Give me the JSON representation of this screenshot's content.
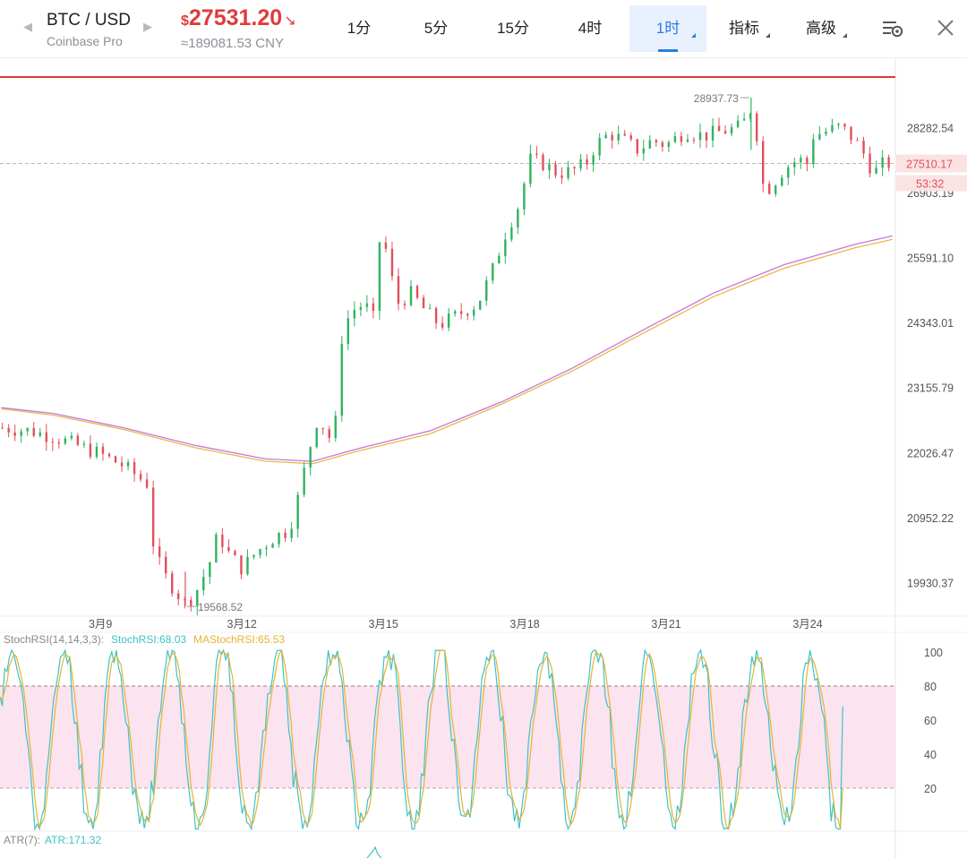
{
  "header": {
    "symbol": "BTC / USD",
    "exchange": "Coinbase Pro",
    "currency_symbol": "$",
    "price": "27531.20",
    "price_cny": "≈189081.53 CNY",
    "accent_down": "#e03b3b"
  },
  "tabs": [
    {
      "label": "1分",
      "active": false,
      "has_menu": false
    },
    {
      "label": "5分",
      "active": false,
      "has_menu": false
    },
    {
      "label": "15分",
      "active": false,
      "has_menu": false
    },
    {
      "label": "4时",
      "active": false,
      "has_menu": false
    },
    {
      "label": "1时",
      "active": true,
      "has_menu": true
    },
    {
      "label": "指标",
      "active": false,
      "has_menu": true
    },
    {
      "label": "高级",
      "active": false,
      "has_menu": true
    }
  ],
  "icons": {
    "prev": "chevron-left-icon",
    "next": "chevron-right-icon",
    "price_direction": "arrow-down-right-icon",
    "settings": "chart-settings-icon",
    "close": "close-icon"
  },
  "chart_data": [
    {
      "type": "candlestick",
      "interval": "1时",
      "y_axis_ticks": [
        28282.54,
        26903.19,
        25591.1,
        24343.01,
        23155.79,
        22026.47,
        20952.22,
        19930.37
      ],
      "y_axis_labels": [
        "28282.54",
        "26903.19",
        "25591.10",
        "24343.01",
        "23155.79",
        "22026.47",
        "20952.22",
        "19930.37"
      ],
      "ylim": [
        19450,
        29400
      ],
      "y_scale": "log",
      "x_axis_labels": [
        "3月9",
        "3月12",
        "3月15",
        "3月18",
        "3月21",
        "3月24"
      ],
      "x_days": [
        9,
        12,
        15,
        18,
        21,
        24
      ],
      "xlim_days": [
        6.87,
        25.86
      ],
      "last_price": "27510.17",
      "last_price_value": 27510.17,
      "countdown": "53:32",
      "high_label": "28937.73",
      "high_value": 28937.73,
      "high_day": 22.8,
      "low_label": "19568.52",
      "low_value": 19568.52,
      "low_day": 10.8,
      "close_path": [
        [
          6.9,
          22450
        ],
        [
          7.5,
          22400
        ],
        [
          8.0,
          22300
        ],
        [
          8.5,
          22150
        ],
        [
          9.0,
          22000
        ],
        [
          9.5,
          21800
        ],
        [
          10.0,
          21500
        ],
        [
          10.1,
          20600
        ],
        [
          10.3,
          20100
        ],
        [
          10.6,
          19800
        ],
        [
          10.8,
          19600
        ],
        [
          11.0,
          19750
        ],
        [
          11.3,
          20200
        ],
        [
          11.5,
          20700
        ],
        [
          11.7,
          20400
        ],
        [
          12.0,
          20150
        ],
        [
          12.3,
          20400
        ],
        [
          12.7,
          20650
        ],
        [
          13.0,
          20750
        ],
        [
          13.2,
          21300
        ],
        [
          13.4,
          22000
        ],
        [
          13.6,
          22600
        ],
        [
          13.8,
          22400
        ],
        [
          13.95,
          22100
        ],
        [
          14.1,
          24000
        ],
        [
          14.3,
          24550
        ],
        [
          14.6,
          24700
        ],
        [
          14.8,
          24400
        ],
        [
          14.95,
          26300
        ],
        [
          15.1,
          25500
        ],
        [
          15.3,
          24700
        ],
        [
          15.6,
          24900
        ],
        [
          15.9,
          24550
        ],
        [
          16.2,
          24300
        ],
        [
          16.6,
          24500
        ],
        [
          17.0,
          24700
        ],
        [
          17.3,
          25300
        ],
        [
          17.6,
          26100
        ],
        [
          17.9,
          26700
        ],
        [
          18.1,
          27600
        ],
        [
          18.4,
          27500
        ],
        [
          18.7,
          27300
        ],
        [
          19.0,
          27350
        ],
        [
          19.3,
          27500
        ],
        [
          19.5,
          27900
        ],
        [
          19.8,
          28150
        ],
        [
          20.1,
          28000
        ],
        [
          20.4,
          27800
        ],
        [
          20.7,
          28000
        ],
        [
          21.0,
          27900
        ],
        [
          21.4,
          28200
        ],
        [
          21.8,
          28100
        ],
        [
          22.2,
          28200
        ],
        [
          22.6,
          28300
        ],
        [
          22.8,
          28700
        ],
        [
          22.9,
          28400
        ],
        [
          23.0,
          27100
        ],
        [
          23.2,
          27000
        ],
        [
          23.5,
          27400
        ],
        [
          23.8,
          27600
        ],
        [
          24.0,
          27500
        ],
        [
          24.1,
          28100
        ],
        [
          24.4,
          28200
        ],
        [
          24.7,
          28300
        ],
        [
          25.0,
          28000
        ],
        [
          25.2,
          27700
        ],
        [
          25.4,
          27300
        ],
        [
          25.6,
          27500
        ],
        [
          25.8,
          27510
        ]
      ],
      "ma_series": [
        {
          "color": "#c478d8",
          "points": [
            [
              6.9,
              22800
            ],
            [
              8.0,
              22700
            ],
            [
              9.5,
              22450
            ],
            [
              11.0,
              22150
            ],
            [
              12.5,
              21920
            ],
            [
              13.5,
              21880
            ],
            [
              14.5,
              22100
            ],
            [
              16.0,
              22400
            ],
            [
              17.5,
              22900
            ],
            [
              19.0,
              23500
            ],
            [
              20.5,
              24200
            ],
            [
              22.0,
              24900
            ],
            [
              23.5,
              25450
            ],
            [
              25.0,
              25850
            ],
            [
              25.8,
              26020
            ]
          ]
        },
        {
          "color": "#e8b84a",
          "points": [
            [
              6.9,
              22780
            ],
            [
              8.0,
              22670
            ],
            [
              9.5,
              22420
            ],
            [
              11.0,
              22110
            ],
            [
              12.5,
              21880
            ],
            [
              13.5,
              21840
            ],
            [
              14.5,
              22060
            ],
            [
              16.0,
              22350
            ],
            [
              17.5,
              22860
            ],
            [
              19.0,
              23450
            ],
            [
              20.5,
              24140
            ],
            [
              22.0,
              24830
            ],
            [
              23.5,
              25380
            ],
            [
              25.0,
              25780
            ],
            [
              25.8,
              25950
            ]
          ]
        }
      ],
      "resistance_color": "#d9373b",
      "up_color": "#2fb25f",
      "down_color": "#e0505b"
    },
    {
      "type": "line",
      "title": "StochRSI(14,14,3,3):",
      "series": [
        {
          "name": "StochRSI",
          "value": "68.03",
          "color": "#3ec2c7"
        },
        {
          "name": "MAStochRSI",
          "value": "65.53",
          "color": "#e2b534"
        }
      ],
      "ylim": [
        -5,
        105
      ],
      "y_ticks": [
        100,
        80,
        60,
        40,
        20
      ],
      "bands": [
        20,
        80
      ],
      "band_color": "#fce3f0",
      "last_value": 68.03
    },
    {
      "type": "line",
      "title": "ATR(7):",
      "series": [
        {
          "name": "ATR",
          "value": "171.32",
          "color": "#3ec2c7"
        }
      ]
    }
  ]
}
